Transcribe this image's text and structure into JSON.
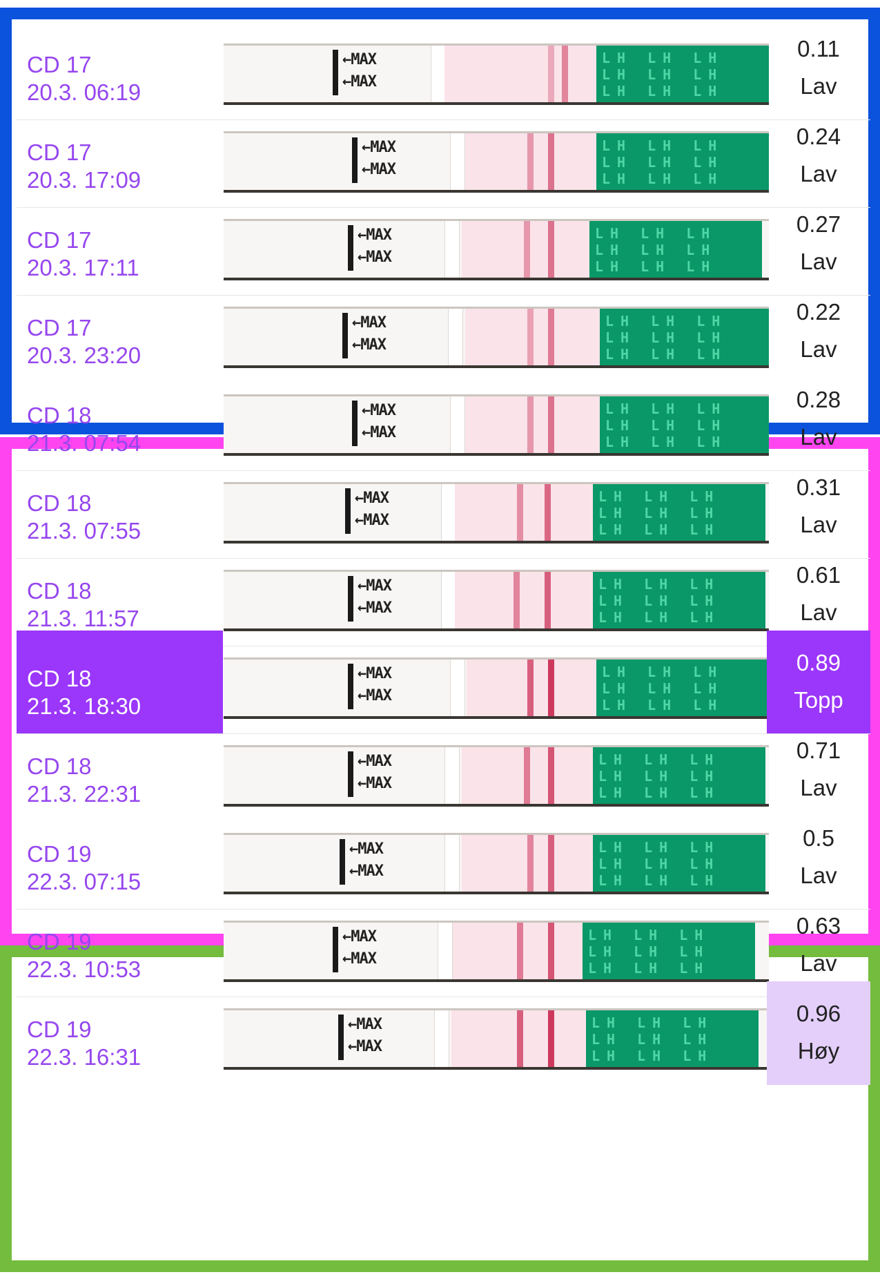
{
  "colors": {
    "group_cd17": "#0b52dc",
    "group_cd18": "#ff44f0",
    "group_cd19": "#74bc3e",
    "label_text": "#9646ee",
    "peak": "#9b36fb",
    "high": "#e3cffa",
    "strip_green": "#0b9868",
    "test_line": "#c8264e"
  },
  "strip_text": {
    "arrow": "←MAX",
    "lh": "LH LH LH LH LH LH LH LH LH LH LH LH LH LH LH"
  },
  "rows": [
    {
      "cd": "CD 17",
      "datetime": "20.3. 06:19",
      "value": "0.11",
      "level": "Lav",
      "highlight": "none",
      "line_intensity": 0.5
    },
    {
      "cd": "CD 17",
      "datetime": "20.3. 17:09",
      "value": "0.24",
      "level": "Lav",
      "highlight": "none",
      "line_intensity": 0.6
    },
    {
      "cd": "CD 17",
      "datetime": "20.3. 17:11",
      "value": "0.27",
      "level": "Lav",
      "highlight": "none",
      "line_intensity": 0.6
    },
    {
      "cd": "CD 17",
      "datetime": "20.3. 23:20",
      "value": "0.22",
      "level": "Lav",
      "highlight": "none",
      "line_intensity": 0.55
    },
    {
      "cd": "CD 18",
      "datetime": "21.3. 07:54",
      "value": "0.28",
      "level": "Lav",
      "highlight": "none",
      "line_intensity": 0.6
    },
    {
      "cd": "CD 18",
      "datetime": "21.3. 07:55",
      "value": "0.31",
      "level": "Lav",
      "highlight": "none",
      "line_intensity": 0.65
    },
    {
      "cd": "CD 18",
      "datetime": "21.3. 11:57",
      "value": "0.61",
      "level": "Lav",
      "highlight": "none",
      "line_intensity": 0.7
    },
    {
      "cd": "CD 18",
      "datetime": "21.3. 18:30",
      "value": "0.89",
      "level": "Topp",
      "highlight": "topp",
      "line_intensity": 0.9
    },
    {
      "cd": "CD 18",
      "datetime": "21.3. 22:31",
      "value": "0.71",
      "level": "Lav",
      "highlight": "none",
      "line_intensity": 0.75
    },
    {
      "cd": "CD 19",
      "datetime": "22.3. 07:15",
      "value": "0.5",
      "level": "Lav",
      "highlight": "none",
      "line_intensity": 0.7
    },
    {
      "cd": "CD 19",
      "datetime": "22.3. 10:53",
      "value": "0.63",
      "level": "Lav",
      "highlight": "none",
      "line_intensity": 0.75
    },
    {
      "cd": "CD 19",
      "datetime": "22.3. 16:31",
      "value": "0.96",
      "level": "Høy",
      "highlight": "hoy",
      "line_intensity": 0.9
    }
  ]
}
